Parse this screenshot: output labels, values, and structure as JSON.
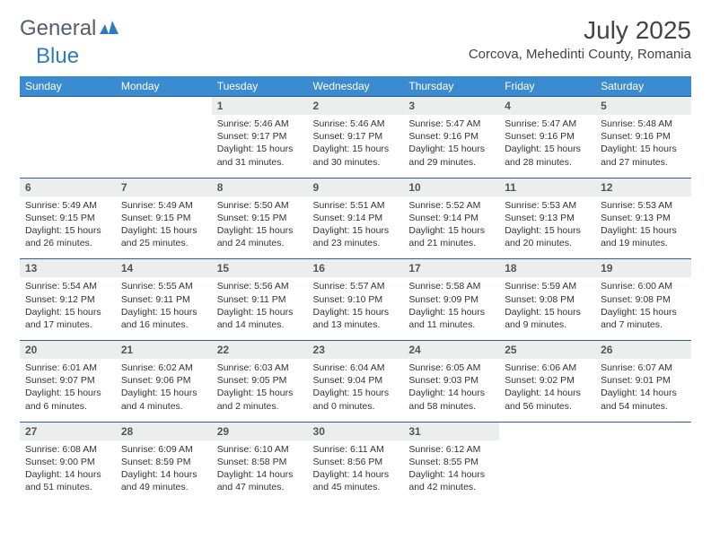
{
  "brand": {
    "part1": "General",
    "part2": "Blue"
  },
  "title": "July 2025",
  "location": "Corcova, Mehedinti County, Romania",
  "colors": {
    "header_bg": "#3b8bd0",
    "header_text": "#ffffff",
    "daynum_bg": "#eceded",
    "row_border": "#2f5f8f",
    "brand_gray": "#55606a",
    "brand_blue": "#2f7bbf"
  },
  "weekdays": [
    "Sunday",
    "Monday",
    "Tuesday",
    "Wednesday",
    "Thursday",
    "Friday",
    "Saturday"
  ],
  "grid": [
    [
      null,
      null,
      {
        "n": "1",
        "sr": "5:46 AM",
        "ss": "9:17 PM",
        "dl": "15 hours and 31 minutes."
      },
      {
        "n": "2",
        "sr": "5:46 AM",
        "ss": "9:17 PM",
        "dl": "15 hours and 30 minutes."
      },
      {
        "n": "3",
        "sr": "5:47 AM",
        "ss": "9:16 PM",
        "dl": "15 hours and 29 minutes."
      },
      {
        "n": "4",
        "sr": "5:47 AM",
        "ss": "9:16 PM",
        "dl": "15 hours and 28 minutes."
      },
      {
        "n": "5",
        "sr": "5:48 AM",
        "ss": "9:16 PM",
        "dl": "15 hours and 27 minutes."
      }
    ],
    [
      {
        "n": "6",
        "sr": "5:49 AM",
        "ss": "9:15 PM",
        "dl": "15 hours and 26 minutes."
      },
      {
        "n": "7",
        "sr": "5:49 AM",
        "ss": "9:15 PM",
        "dl": "15 hours and 25 minutes."
      },
      {
        "n": "8",
        "sr": "5:50 AM",
        "ss": "9:15 PM",
        "dl": "15 hours and 24 minutes."
      },
      {
        "n": "9",
        "sr": "5:51 AM",
        "ss": "9:14 PM",
        "dl": "15 hours and 23 minutes."
      },
      {
        "n": "10",
        "sr": "5:52 AM",
        "ss": "9:14 PM",
        "dl": "15 hours and 21 minutes."
      },
      {
        "n": "11",
        "sr": "5:53 AM",
        "ss": "9:13 PM",
        "dl": "15 hours and 20 minutes."
      },
      {
        "n": "12",
        "sr": "5:53 AM",
        "ss": "9:13 PM",
        "dl": "15 hours and 19 minutes."
      }
    ],
    [
      {
        "n": "13",
        "sr": "5:54 AM",
        "ss": "9:12 PM",
        "dl": "15 hours and 17 minutes."
      },
      {
        "n": "14",
        "sr": "5:55 AM",
        "ss": "9:11 PM",
        "dl": "15 hours and 16 minutes."
      },
      {
        "n": "15",
        "sr": "5:56 AM",
        "ss": "9:11 PM",
        "dl": "15 hours and 14 minutes."
      },
      {
        "n": "16",
        "sr": "5:57 AM",
        "ss": "9:10 PM",
        "dl": "15 hours and 13 minutes."
      },
      {
        "n": "17",
        "sr": "5:58 AM",
        "ss": "9:09 PM",
        "dl": "15 hours and 11 minutes."
      },
      {
        "n": "18",
        "sr": "5:59 AM",
        "ss": "9:08 PM",
        "dl": "15 hours and 9 minutes."
      },
      {
        "n": "19",
        "sr": "6:00 AM",
        "ss": "9:08 PM",
        "dl": "15 hours and 7 minutes."
      }
    ],
    [
      {
        "n": "20",
        "sr": "6:01 AM",
        "ss": "9:07 PM",
        "dl": "15 hours and 6 minutes."
      },
      {
        "n": "21",
        "sr": "6:02 AM",
        "ss": "9:06 PM",
        "dl": "15 hours and 4 minutes."
      },
      {
        "n": "22",
        "sr": "6:03 AM",
        "ss": "9:05 PM",
        "dl": "15 hours and 2 minutes."
      },
      {
        "n": "23",
        "sr": "6:04 AM",
        "ss": "9:04 PM",
        "dl": "15 hours and 0 minutes."
      },
      {
        "n": "24",
        "sr": "6:05 AM",
        "ss": "9:03 PM",
        "dl": "14 hours and 58 minutes."
      },
      {
        "n": "25",
        "sr": "6:06 AM",
        "ss": "9:02 PM",
        "dl": "14 hours and 56 minutes."
      },
      {
        "n": "26",
        "sr": "6:07 AM",
        "ss": "9:01 PM",
        "dl": "14 hours and 54 minutes."
      }
    ],
    [
      {
        "n": "27",
        "sr": "6:08 AM",
        "ss": "9:00 PM",
        "dl": "14 hours and 51 minutes."
      },
      {
        "n": "28",
        "sr": "6:09 AM",
        "ss": "8:59 PM",
        "dl": "14 hours and 49 minutes."
      },
      {
        "n": "29",
        "sr": "6:10 AM",
        "ss": "8:58 PM",
        "dl": "14 hours and 47 minutes."
      },
      {
        "n": "30",
        "sr": "6:11 AM",
        "ss": "8:56 PM",
        "dl": "14 hours and 45 minutes."
      },
      {
        "n": "31",
        "sr": "6:12 AM",
        "ss": "8:55 PM",
        "dl": "14 hours and 42 minutes."
      },
      null,
      null
    ]
  ],
  "labels": {
    "sunrise": "Sunrise:",
    "sunset": "Sunset:",
    "daylight": "Daylight:"
  }
}
